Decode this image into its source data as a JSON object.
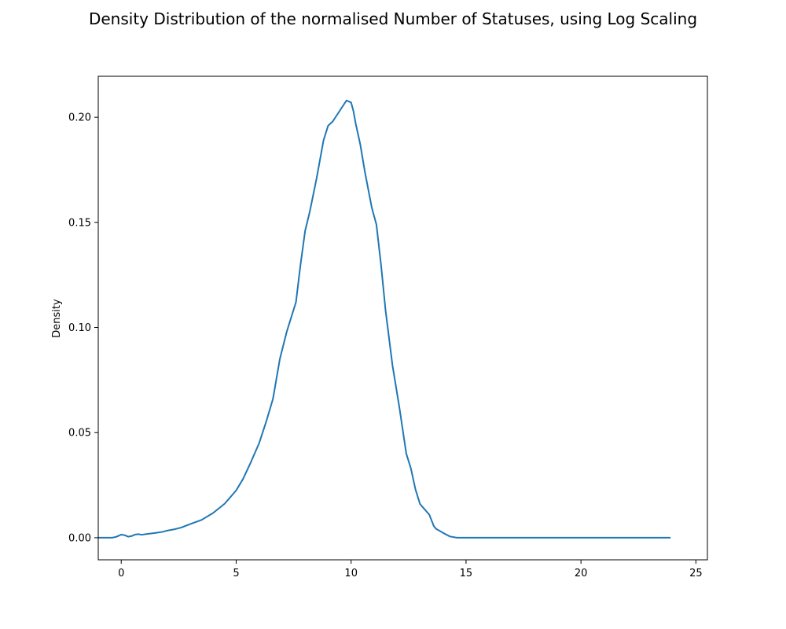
{
  "chart_data": {
    "type": "line",
    "title": "Density Distribution of the normalised Number of Statuses, using Log Scaling",
    "xlabel": "",
    "ylabel": "Density",
    "xlim": [
      -1,
      25.5
    ],
    "ylim": [
      -0.0105,
      0.2195
    ],
    "xticks": [
      0,
      5,
      10,
      15,
      20,
      25
    ],
    "yticks": [
      0.0,
      0.05,
      0.1,
      0.15,
      0.2
    ],
    "ytick_labels": [
      "0.00",
      "0.05",
      "0.10",
      "0.15",
      "0.20"
    ],
    "grid": false,
    "legend": "none",
    "series": [
      {
        "color": "#1f77b4",
        "x": [
          -1.0,
          -0.4,
          -0.2,
          0.0,
          0.15,
          0.3,
          0.45,
          0.6,
          0.75,
          0.9,
          1.0,
          1.2,
          1.5,
          1.8,
          2.0,
          2.3,
          2.6,
          3.0,
          3.5,
          4.0,
          4.5,
          5.0,
          5.3,
          5.6,
          6.0,
          6.3,
          6.6,
          6.9,
          7.2,
          7.6,
          7.8,
          8.0,
          8.2,
          8.5,
          8.8,
          9.0,
          9.2,
          9.5,
          9.8,
          10.0,
          10.1,
          10.2,
          10.4,
          10.6,
          10.9,
          11.1,
          11.3,
          11.5,
          11.8,
          12.1,
          12.4,
          12.6,
          12.8,
          13.0,
          13.2,
          13.4,
          13.6,
          13.7,
          13.8,
          14.0,
          14.3,
          14.6,
          15.0,
          16.0,
          18.0,
          20.0,
          22.0,
          23.9
        ],
        "y": [
          0.0,
          0.0,
          0.0005,
          0.0015,
          0.0012,
          0.0005,
          0.0008,
          0.0015,
          0.0017,
          0.0014,
          0.0016,
          0.0019,
          0.0023,
          0.0028,
          0.0034,
          0.004,
          0.0048,
          0.0065,
          0.0085,
          0.0118,
          0.0162,
          0.0225,
          0.028,
          0.035,
          0.045,
          0.055,
          0.066,
          0.085,
          0.098,
          0.112,
          0.13,
          0.146,
          0.155,
          0.171,
          0.189,
          0.196,
          0.198,
          0.203,
          0.208,
          0.207,
          0.203,
          0.197,
          0.187,
          0.174,
          0.157,
          0.149,
          0.13,
          0.108,
          0.082,
          0.062,
          0.04,
          0.033,
          0.023,
          0.016,
          0.0135,
          0.011,
          0.0055,
          0.0042,
          0.0036,
          0.0023,
          0.0006,
          0.0,
          0.0,
          0.0,
          0.0,
          0.0,
          0.0,
          0.0
        ]
      }
    ]
  }
}
